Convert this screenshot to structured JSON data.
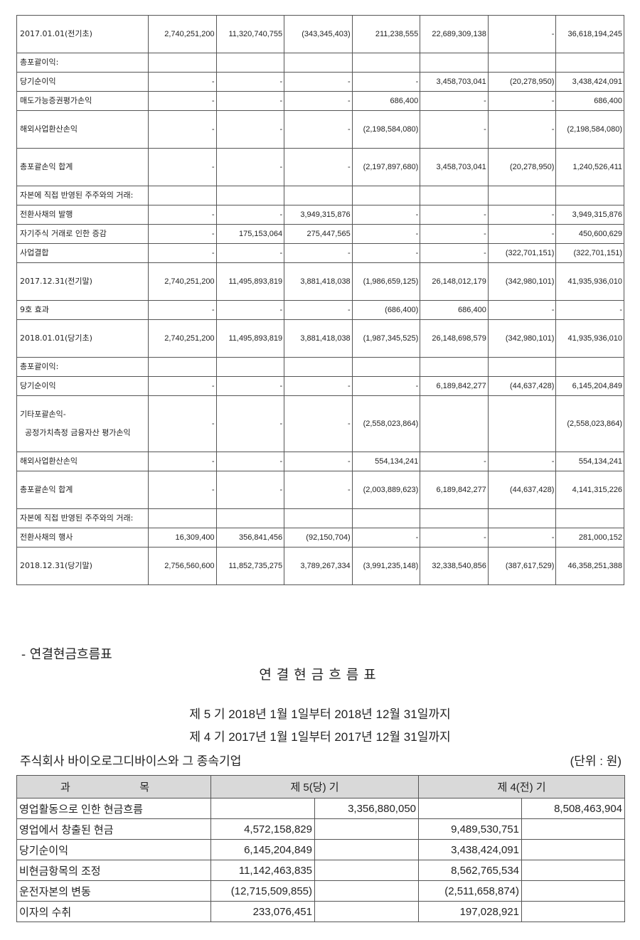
{
  "equity_table": {
    "rows": [
      {
        "label": "2017.01.01(전기초)",
        "values": [
          "2,740,251,200",
          "11,320,740,755",
          "(343,345,403)",
          "211,238,555",
          "22,689,309,138",
          "-",
          "36,618,194,245"
        ]
      },
      {
        "label": "총포괄이익:",
        "values": [
          "",
          "",
          "",
          "",
          "",
          "",
          ""
        ]
      },
      {
        "label": "당기순이익",
        "values": [
          "-",
          "-",
          "-",
          "-",
          "3,458,703,041",
          "(20,278,950)",
          "3,438,424,091"
        ]
      },
      {
        "label": "매도가능증권평가손익",
        "values": [
          "-",
          "-",
          "-",
          "686,400",
          "-",
          "-",
          "686,400"
        ]
      },
      {
        "label": "해외사업환산손익",
        "values": [
          "-",
          "-",
          "-",
          "(2,198,584,080)",
          "-",
          "-",
          "(2,198,584,080)"
        ]
      },
      {
        "label": "총포괄손익 합계",
        "values": [
          "-",
          "-",
          "-",
          "(2,197,897,680)",
          "3,458,703,041",
          "(20,278,950)",
          "1,240,526,411"
        ]
      },
      {
        "label": "자본에 직접 반영된 주주와의 거래:",
        "values": [
          "",
          "",
          "",
          "",
          "",
          "",
          ""
        ]
      },
      {
        "label": "전환사채의 발행",
        "values": [
          "-",
          "-",
          "3,949,315,876",
          "-",
          "-",
          "-",
          "3,949,315,876"
        ]
      },
      {
        "label": "자기주식 거래로 인한 증감",
        "values": [
          "-",
          "175,153,064",
          "275,447,565",
          "-",
          "-",
          "-",
          "450,600,629"
        ]
      },
      {
        "label": "사업결합",
        "values": [
          "-",
          "-",
          "-",
          "-",
          "-",
          "(322,701,151)",
          "(322,701,151)"
        ]
      },
      {
        "label": "2017.12.31(전기말)",
        "values": [
          "2,740,251,200",
          "11,495,893,819",
          "3,881,418,038",
          "(1,986,659,125)",
          "26,148,012,179",
          "(342,980,101)",
          "41,935,936,010"
        ]
      },
      {
        "label": "9호 효과",
        "values": [
          "-",
          "-",
          "-",
          "(686,400)",
          "686,400",
          "-",
          "-"
        ]
      },
      {
        "label": "2018.01.01(당기초)",
        "values": [
          "2,740,251,200",
          "11,495,893,819",
          "3,881,418,038",
          "(1,987,345,525)",
          "26,148,698,579",
          "(342,980,101)",
          "41,935,936,010"
        ]
      },
      {
        "label": "총포괄이익:",
        "values": [
          "",
          "",
          "",
          "",
          "",
          "",
          ""
        ]
      },
      {
        "label": "당기순이익",
        "values": [
          "-",
          "-",
          "-",
          "-",
          "6,189,842,277",
          "(44,637,428)",
          "6,145,204,849"
        ]
      },
      {
        "label": "기타포괄손익-\n  공정가치측정 금융자산 평가손익",
        "values": [
          "-",
          "-",
          "-",
          "(2,558,023,864)",
          "",
          "",
          "(2,558,023,864)"
        ]
      },
      {
        "label": "해외사업환산손익",
        "values": [
          "-",
          "-",
          "-",
          "554,134,241",
          "-",
          "-",
          "554,134,241"
        ]
      },
      {
        "label": "총포괄손익 합계",
        "values": [
          "-",
          "-",
          "-",
          "(2,003,889,623)",
          "6,189,842,277",
          "(44,637,428)",
          "4,141,315,226"
        ]
      },
      {
        "label": "자본에 직접 반영된 주주와의 거래:",
        "values": [
          "",
          "",
          "",
          "",
          "",
          "",
          ""
        ]
      },
      {
        "label": "전환사채의 행사",
        "values": [
          "16,309,400",
          "356,841,456",
          "(92,150,704)",
          "-",
          "-",
          "-",
          "281,000,152"
        ]
      },
      {
        "label": "2018.12.31(당기말)",
        "values": [
          "2,756,560,600",
          "11,852,735,275",
          "3,789,267,334",
          "(3,991,235,148)",
          "32,338,540,856",
          "(387,617,529)",
          "46,358,251,388"
        ]
      }
    ]
  },
  "cash_flow": {
    "section_title": "- 연결현금흐름표",
    "title": "연결현금흐름표",
    "period_current": "제 5 기 2018년 1월 1일부터 2018년 12월 31일까지",
    "period_prior": "제 4 기 2017년 1월 1일부터 2017년 12월 31일까지",
    "company": "주식회사 바이오로그디바이스와 그 종속기업",
    "unit": "(단위 : 원)",
    "header": {
      "label_left": "과",
      "label_right": "목",
      "current": "제 5(당) 기",
      "prior": "제 4(전) 기"
    },
    "rows": [
      {
        "label": "영업활동으로 인한 현금흐름",
        "values": [
          "",
          "3,356,880,050",
          "",
          "8,508,463,904"
        ]
      },
      {
        "label": "영업에서 창출된 현금",
        "values": [
          "4,572,158,829",
          "",
          "9,489,530,751",
          ""
        ]
      },
      {
        "label": "당기순이익",
        "values": [
          "6,145,204,849",
          "",
          "3,438,424,091",
          ""
        ]
      },
      {
        "label": "비현금항목의 조정",
        "values": [
          "11,142,463,835",
          "",
          "8,562,765,534",
          ""
        ]
      },
      {
        "label": "운전자본의 변동",
        "values": [
          "(12,715,509,855)",
          "",
          "(2,511,658,874)",
          ""
        ]
      },
      {
        "label": "이자의 수취",
        "values": [
          "233,076,451",
          "",
          "197,028,921",
          ""
        ]
      }
    ]
  }
}
